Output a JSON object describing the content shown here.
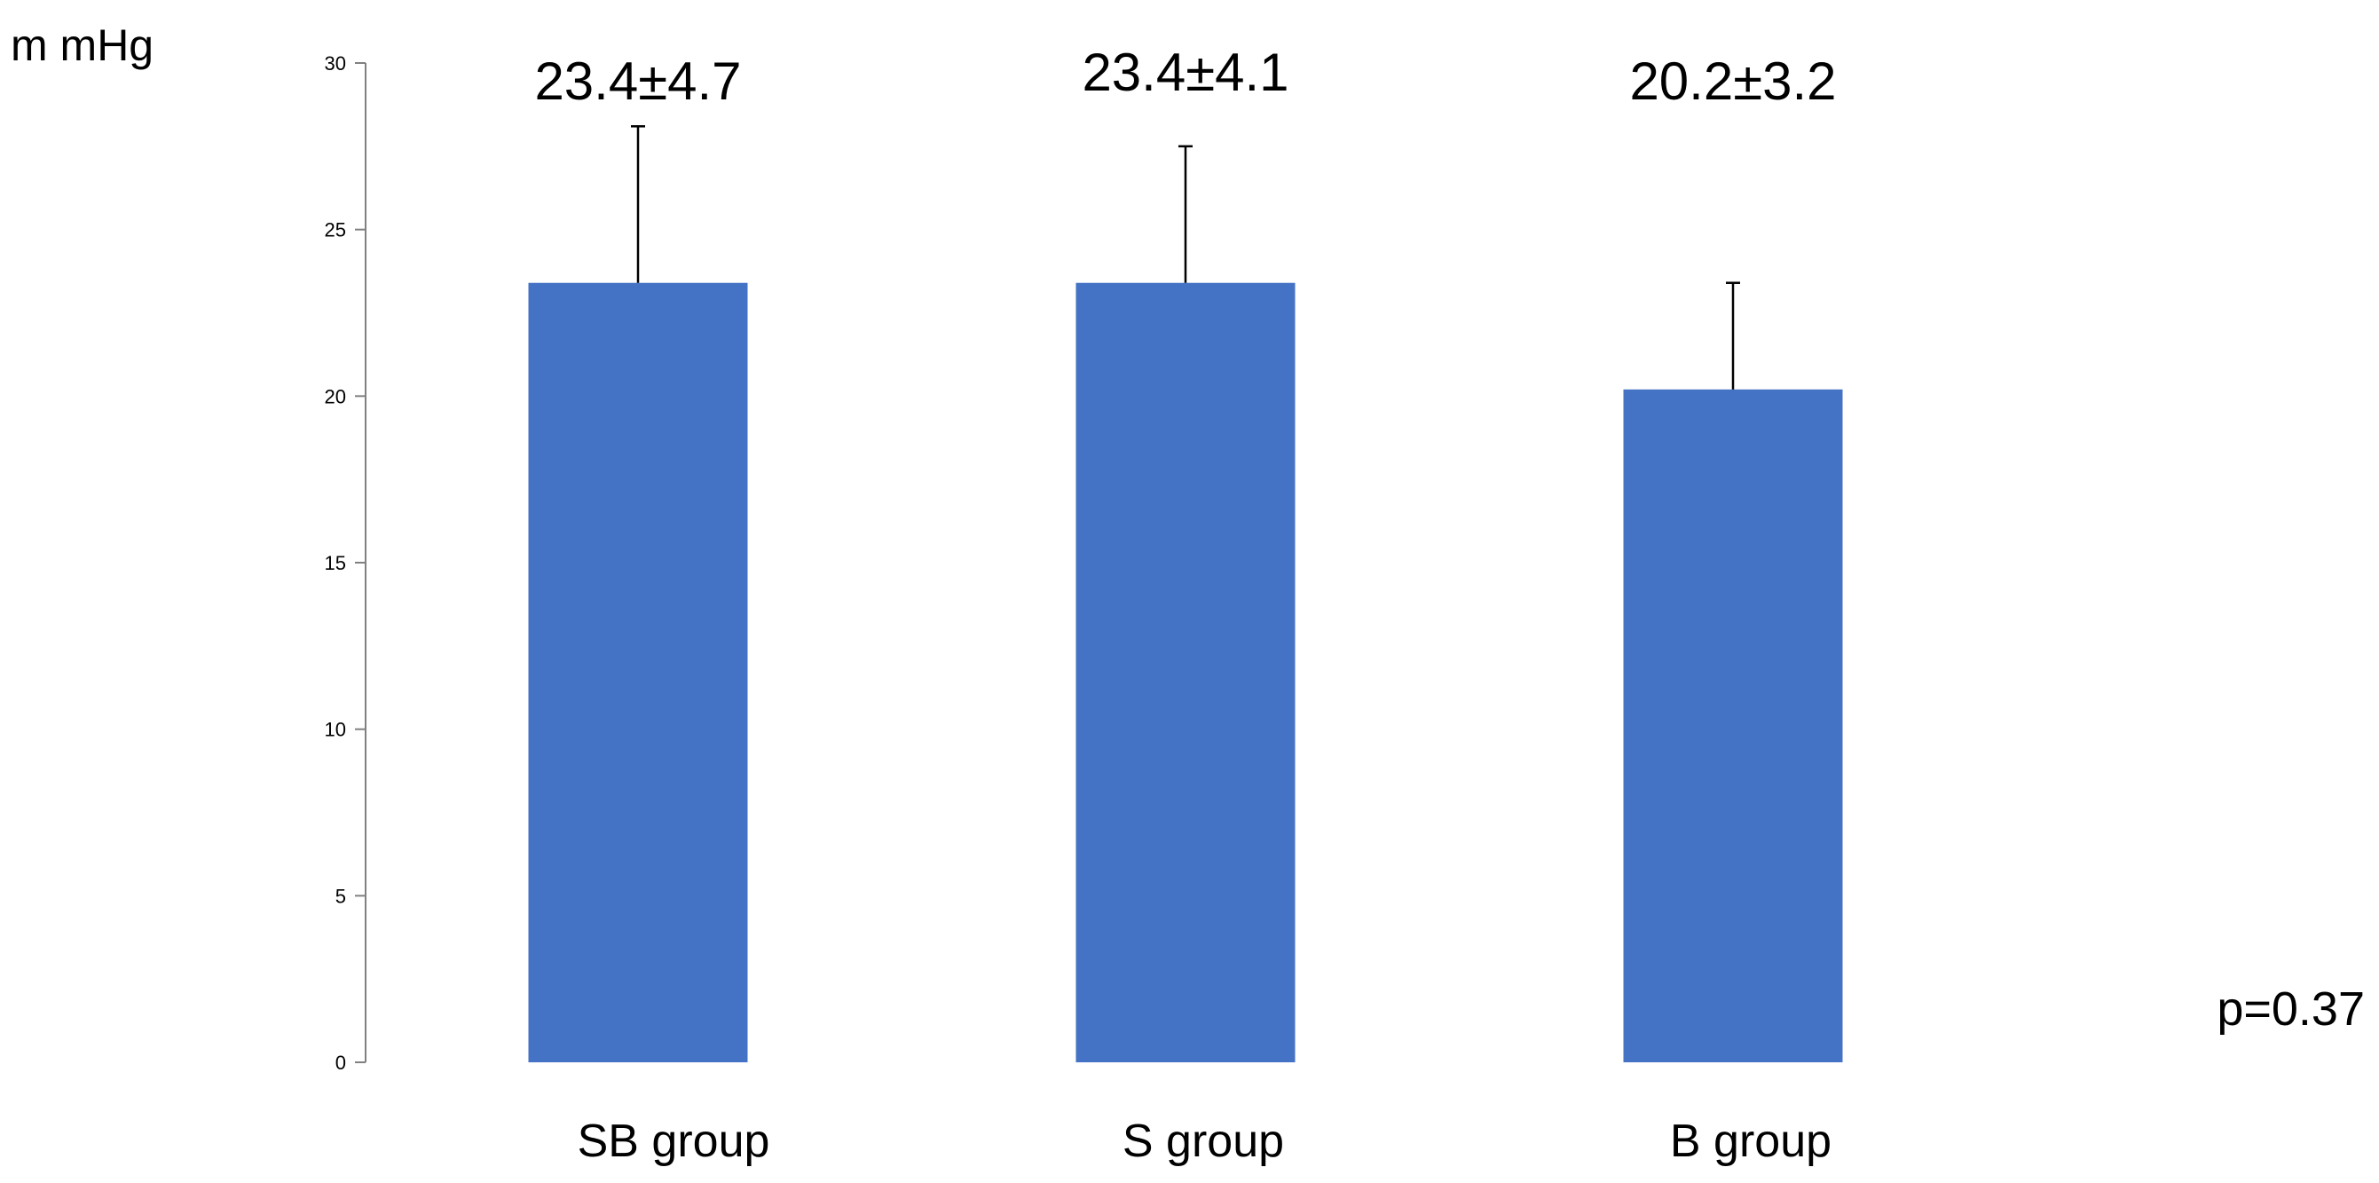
{
  "chart_data": {
    "type": "bar",
    "ylabel": "m mHg",
    "ylim": [
      0,
      30
    ],
    "yticks": [
      0,
      5,
      10,
      15,
      20,
      25,
      30
    ],
    "grid": false,
    "categories": [
      "SB group",
      "S group",
      "B group"
    ],
    "values": [
      23.4,
      23.4,
      20.2
    ],
    "errors": [
      4.7,
      4.1,
      3.2
    ],
    "data_labels": [
      "23.4±4.7",
      "23.4±4.1",
      "20.2±3.2"
    ],
    "annotation": "p=0.37",
    "bar_color": "#4472C4",
    "axis_color": "#808080",
    "error_bar_color": "#000000"
  }
}
